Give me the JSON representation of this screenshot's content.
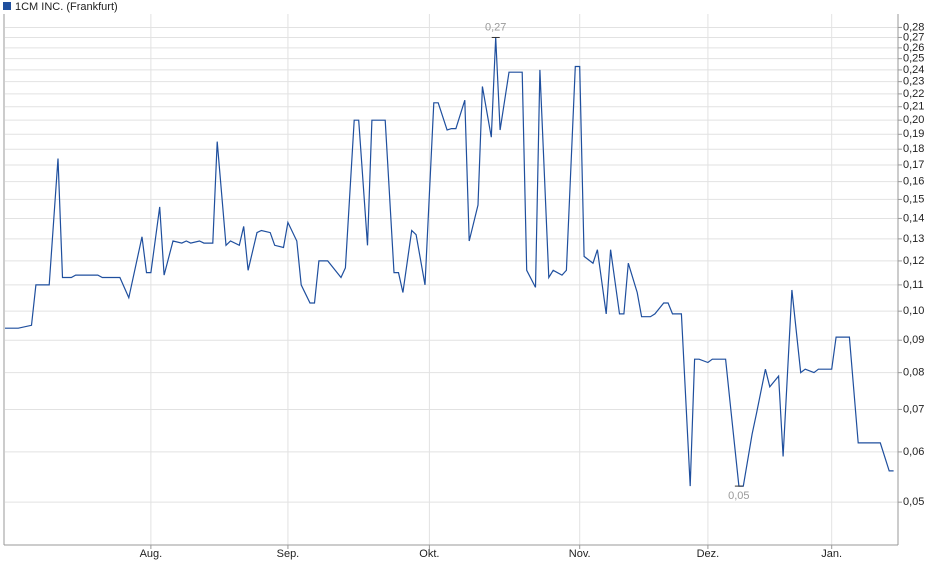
{
  "chart_data": {
    "type": "line",
    "log_scale": true,
    "grid": true,
    "legend": "top-left",
    "xlim": [
      0,
      202
    ],
    "xticks": [
      {
        "value": 33,
        "label": "Aug."
      },
      {
        "value": 64,
        "label": "Sep."
      },
      {
        "value": 96,
        "label": "Okt."
      },
      {
        "value": 130,
        "label": "Nov."
      },
      {
        "value": 159,
        "label": "Dez."
      },
      {
        "value": 187,
        "label": "Jan."
      }
    ],
    "x": [
      0,
      3,
      6,
      7,
      10,
      12,
      13,
      15,
      16,
      21,
      22,
      26,
      28,
      31,
      32,
      33,
      35,
      36,
      38,
      40,
      41,
      42,
      44,
      45,
      47,
      48,
      50,
      51,
      53,
      54,
      55,
      57,
      58,
      60,
      61,
      63,
      64,
      66,
      67,
      69,
      70,
      71,
      73,
      76,
      77,
      79,
      80,
      82,
      83,
      86,
      88,
      89,
      90,
      92,
      93,
      95,
      97,
      98,
      100,
      101,
      102,
      104,
      105,
      107,
      108,
      110,
      111,
      112,
      114,
      116,
      117,
      118,
      120,
      121,
      123,
      124,
      126,
      127,
      129,
      130,
      131,
      133,
      134,
      136,
      137,
      139,
      140,
      141,
      143,
      144,
      146,
      147,
      149,
      150,
      151,
      153,
      155,
      156,
      157,
      159,
      160,
      163,
      164,
      166,
      167,
      169,
      170,
      172,
      173,
      175,
      176,
      178,
      180,
      181,
      183,
      184,
      187,
      188,
      190,
      191,
      193,
      196,
      198,
      200,
      201
    ],
    "ylim": [
      0.0428,
      0.294
    ],
    "yticks": [
      {
        "value": 0.05,
        "label": "0,05"
      },
      {
        "value": 0.06,
        "label": "0,06"
      },
      {
        "value": 0.07,
        "label": "0,07"
      },
      {
        "value": 0.08,
        "label": "0,08"
      },
      {
        "value": 0.09,
        "label": "0,09"
      },
      {
        "value": 0.1,
        "label": "0,10"
      },
      {
        "value": 0.11,
        "label": "0,11"
      },
      {
        "value": 0.12,
        "label": "0,12"
      },
      {
        "value": 0.13,
        "label": "0,13"
      },
      {
        "value": 0.14,
        "label": "0,14"
      },
      {
        "value": 0.15,
        "label": "0,15"
      },
      {
        "value": 0.16,
        "label": "0,16"
      },
      {
        "value": 0.17,
        "label": "0,17"
      },
      {
        "value": 0.18,
        "label": "0,18"
      },
      {
        "value": 0.19,
        "label": "0,19"
      },
      {
        "value": 0.2,
        "label": "0,20"
      },
      {
        "value": 0.21,
        "label": "0,21"
      },
      {
        "value": 0.22,
        "label": "0,22"
      },
      {
        "value": 0.23,
        "label": "0,23"
      },
      {
        "value": 0.24,
        "label": "0,24"
      },
      {
        "value": 0.25,
        "label": "0,25"
      },
      {
        "value": 0.26,
        "label": "0,26"
      },
      {
        "value": 0.27,
        "label": "0,27"
      },
      {
        "value": 0.28,
        "label": "0,28"
      }
    ],
    "series": [
      {
        "name": "1CM INC. (Frankfurt)",
        "color": "#1f4f9e",
        "values": [
          0.094,
          0.094,
          0.095,
          0.11,
          0.11,
          0.174,
          0.113,
          0.113,
          0.114,
          0.114,
          0.113,
          0.113,
          0.105,
          0.131,
          0.115,
          0.115,
          0.146,
          0.114,
          0.129,
          0.128,
          0.129,
          0.128,
          0.129,
          0.128,
          0.128,
          0.185,
          0.127,
          0.129,
          0.127,
          0.136,
          0.116,
          0.133,
          0.134,
          0.133,
          0.127,
          0.126,
          0.138,
          0.129,
          0.11,
          0.103,
          0.103,
          0.12,
          0.12,
          0.113,
          0.117,
          0.2,
          0.2,
          0.127,
          0.2,
          0.2,
          0.115,
          0.115,
          0.107,
          0.134,
          0.132,
          0.11,
          0.213,
          0.213,
          0.193,
          0.194,
          0.194,
          0.215,
          0.129,
          0.147,
          0.226,
          0.188,
          0.27,
          0.193,
          0.238,
          0.238,
          0.238,
          0.116,
          0.109,
          0.24,
          0.113,
          0.116,
          0.114,
          0.116,
          0.243,
          0.243,
          0.122,
          0.119,
          0.125,
          0.099,
          0.125,
          0.099,
          0.099,
          0.119,
          0.107,
          0.098,
          0.098,
          0.099,
          0.103,
          0.103,
          0.099,
          0.099,
          0.053,
          0.084,
          0.084,
          0.083,
          0.084,
          0.084,
          0.072,
          0.053,
          0.053,
          0.064,
          0.069,
          0.081,
          0.076,
          0.079,
          0.059,
          0.108,
          0.08,
          0.081,
          0.08,
          0.081,
          0.081,
          0.091,
          0.091,
          0.091,
          0.062,
          0.062,
          0.062,
          0.056,
          0.056
        ],
        "value_labels": [
          null,
          null,
          null,
          null,
          null,
          null,
          null,
          null,
          null,
          null,
          null,
          null,
          null,
          null,
          null,
          null,
          null,
          null,
          null,
          null,
          null,
          null,
          null,
          null,
          null,
          null,
          null,
          null,
          null,
          null,
          null,
          null,
          null,
          null,
          null,
          null,
          null,
          null,
          null,
          null,
          null,
          null,
          null,
          null,
          null,
          null,
          null,
          null,
          null,
          null,
          null,
          null,
          null,
          null,
          null,
          null,
          null,
          null,
          null,
          null,
          null,
          null,
          null,
          null,
          null,
          null,
          "0,27",
          null,
          null,
          null,
          null,
          null,
          null,
          null,
          null,
          null,
          null,
          null,
          null,
          null,
          null,
          null,
          null,
          null,
          null,
          null,
          null,
          null,
          null,
          null,
          null,
          null,
          null,
          null,
          null,
          null,
          null,
          null,
          null,
          null,
          null,
          null,
          null,
          "0,05",
          null,
          null,
          null,
          null,
          null,
          null,
          null,
          null,
          null,
          null,
          null,
          null,
          null,
          null,
          null,
          null,
          null,
          null,
          null,
          null,
          null
        ]
      }
    ]
  }
}
